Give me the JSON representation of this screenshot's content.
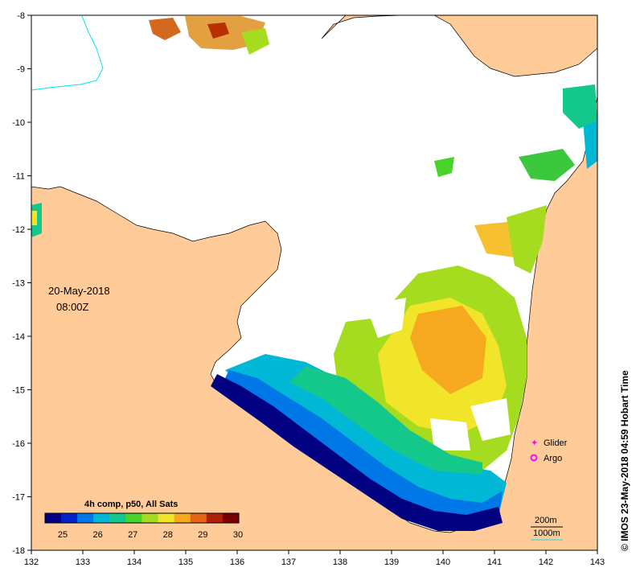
{
  "map": {
    "date_label": "20-May-2018",
    "time_label": "08:00Z",
    "x_ticks": [
      "132",
      "133",
      "134",
      "135",
      "136",
      "137",
      "138",
      "139",
      "140",
      "141",
      "142",
      "143"
    ],
    "y_ticks": [
      "-8",
      "-9",
      "-10",
      "-11",
      "-12",
      "-13",
      "-14",
      "-15",
      "-16",
      "-17",
      "-18"
    ],
    "colorbar": {
      "title": "4h comp, p50, All Sats",
      "ticks": [
        "25",
        "26",
        "27",
        "28",
        "29",
        "30"
      ],
      "colors": [
        "#000080",
        "#0022c8",
        "#0077e6",
        "#00b7d6",
        "#14c88c",
        "#48d22a",
        "#a6dc20",
        "#f2e428",
        "#f6a81e",
        "#e26414",
        "#b02008",
        "#7a0000"
      ]
    },
    "legend": [
      {
        "label": "Glider",
        "color": "#ff00ff"
      },
      {
        "label": "Argo",
        "color": "#ff00ff"
      }
    ],
    "contours": [
      "200m",
      "1000m"
    ],
    "credit": "© IMOS 23-May-2018 04:59 Hobart Time",
    "land_color": "#ffcc99"
  }
}
